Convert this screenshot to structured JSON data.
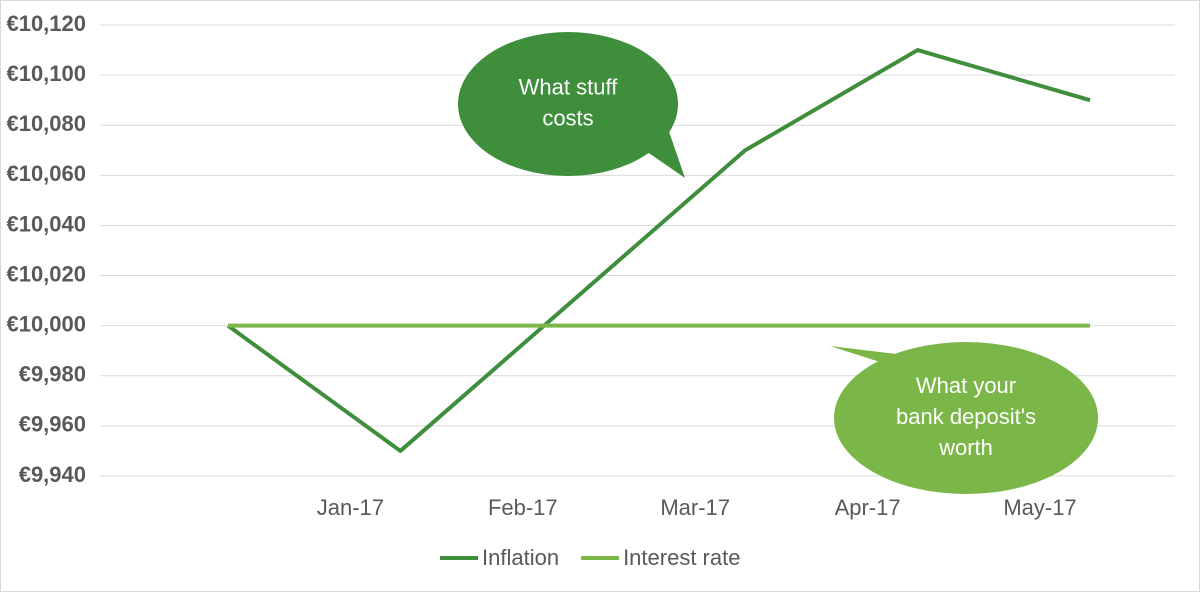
{
  "chart_data": {
    "type": "line",
    "categories": [
      null,
      "Jan-17",
      "Feb-17",
      "Mar-17",
      "Apr-17",
      "May-17"
    ],
    "series": [
      {
        "name": "Inflation",
        "color": "#3e8e3c",
        "values": [
          10000,
          9950,
          10010,
          10070,
          10110,
          10090
        ]
      },
      {
        "name": "Interest rate",
        "color": "#7ab648",
        "values": [
          10000,
          10000,
          10000,
          10000,
          10000,
          10000
        ]
      }
    ],
    "ylim": [
      9940,
      10120
    ],
    "yticks": [
      {
        "value": 9940,
        "label": "€9,940"
      },
      {
        "value": 9960,
        "label": "€9,960"
      },
      {
        "value": 9980,
        "label": "€9,980"
      },
      {
        "value": 10000,
        "label": "€10,000"
      },
      {
        "value": 10020,
        "label": "€10,020"
      },
      {
        "value": 10040,
        "label": "€10,040"
      },
      {
        "value": 10060,
        "label": "€10,060"
      },
      {
        "value": 10080,
        "label": "€10,080"
      },
      {
        "value": 10100,
        "label": "€10,100"
      },
      {
        "value": 10120,
        "label": "€10,120"
      }
    ],
    "grid": true,
    "legend": "bottom",
    "annotations": [
      {
        "lines": [
          "What stuff",
          "costs"
        ],
        "color": "#3e8e3c"
      },
      {
        "lines": [
          "What your",
          "bank deposit's",
          "worth"
        ],
        "color": "#7ab648"
      }
    ]
  }
}
